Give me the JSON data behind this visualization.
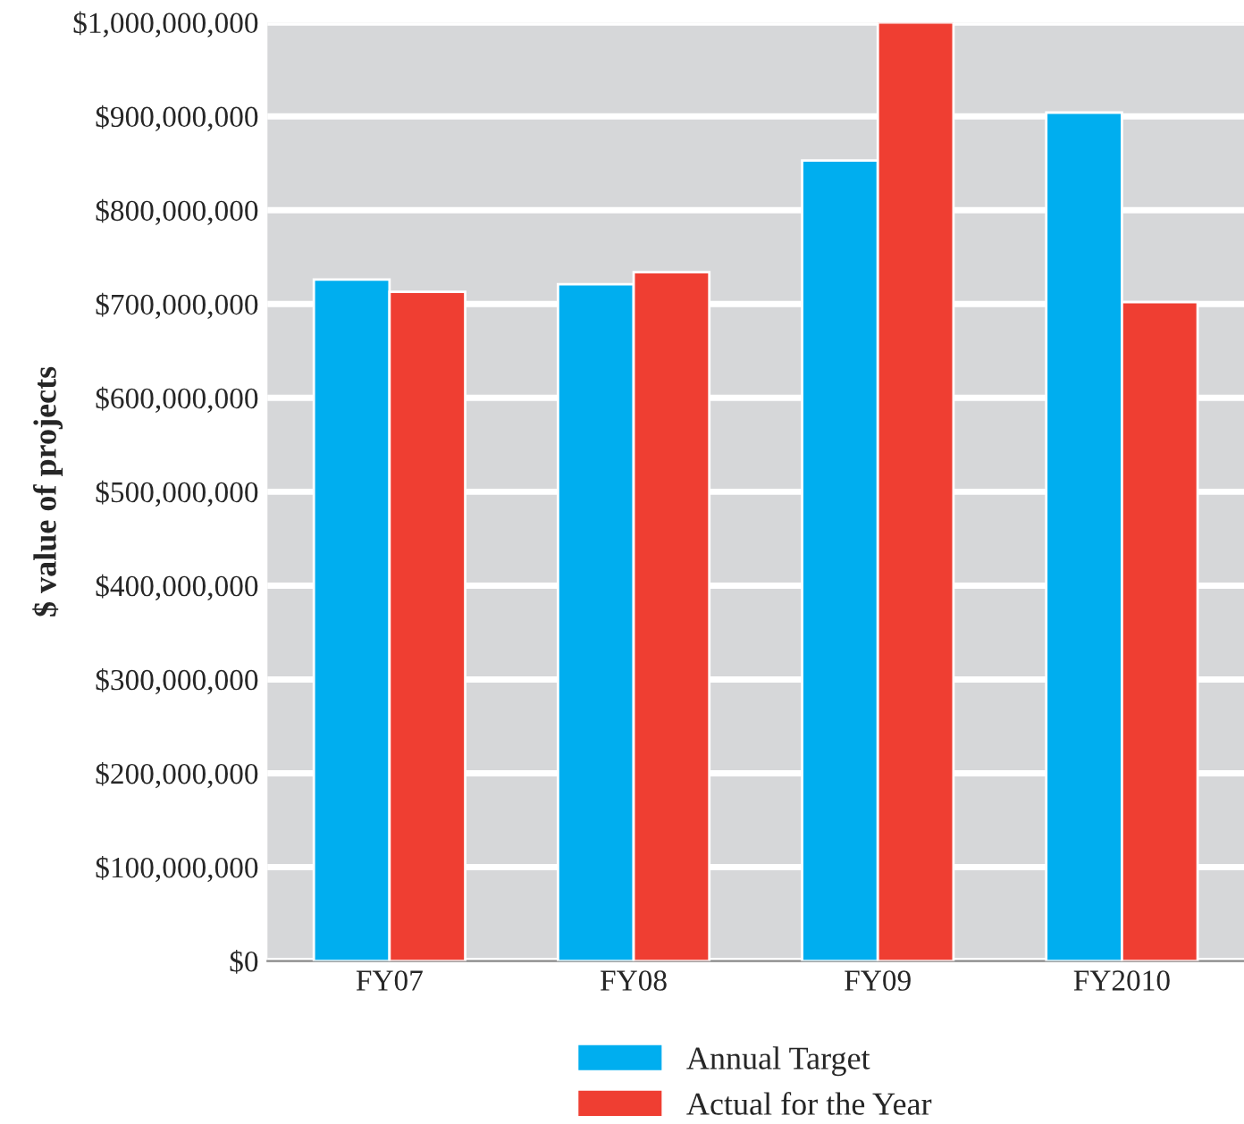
{
  "chart_data": {
    "type": "bar",
    "ylabel": "$ value of projects",
    "categories": [
      "FY07",
      "FY08",
      "FY09",
      "FY2010"
    ],
    "series": [
      {
        "name": "Annual Target",
        "color": "#00aeef",
        "values": [
          726000000,
          721000000,
          853000000,
          904000000
        ]
      },
      {
        "name": "Actual for the Year",
        "color": "#ef3e32",
        "values": [
          713000000,
          734000000,
          1000000000,
          702000000
        ]
      }
    ],
    "ylim": [
      0,
      1000000000
    ],
    "yticks": [
      {
        "value": 0,
        "label": "$0"
      },
      {
        "value": 100000000,
        "label": "$100,000,000"
      },
      {
        "value": 200000000,
        "label": "$200,000,000"
      },
      {
        "value": 300000000,
        "label": "$300,000,000"
      },
      {
        "value": 400000000,
        "label": "$400,000,000"
      },
      {
        "value": 500000000,
        "label": "$500,000,000"
      },
      {
        "value": 600000000,
        "label": "$600,000,000"
      },
      {
        "value": 700000000,
        "label": "$700,000,000"
      },
      {
        "value": 800000000,
        "label": "$800,000,000"
      },
      {
        "value": 900000000,
        "label": "$900,000,000"
      },
      {
        "value": 1000000000,
        "label": "$1,000,000,000"
      }
    ],
    "grid": "y",
    "legend": "bottom"
  }
}
